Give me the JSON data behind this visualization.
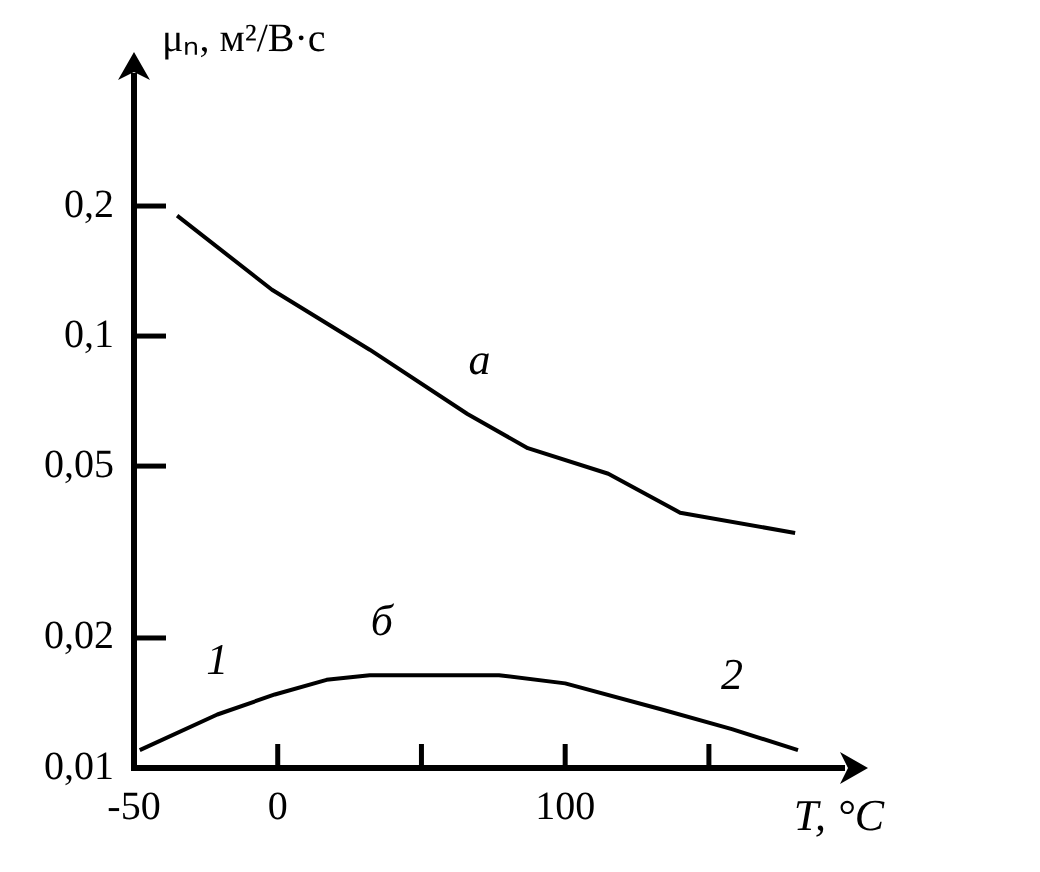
{
  "chart_data": {
    "type": "line",
    "xlabel": "T, °C",
    "ylabel": "μₙ, м²/В·с",
    "log": "y",
    "xlim": [
      -50,
      197
    ],
    "ylim": [
      0.01,
      0.4
    ],
    "xticks": [
      -50,
      0,
      {
        "value": 50,
        "label": null
      },
      100,
      {
        "value": 150,
        "label": null
      }
    ],
    "yticks": [
      {
        "value": 0.01,
        "label": "0,01"
      },
      {
        "value": 0.02,
        "label": "0,02"
      },
      {
        "value": 0.05,
        "label": "0,05"
      },
      {
        "value": 0.1,
        "label": "0,1"
      },
      {
        "value": 0.2,
        "label": "0,2"
      }
    ],
    "grid": false,
    "legend": false,
    "series": [
      {
        "name": "а",
        "color": "#000000",
        "x": [
          -35,
          -2,
          32,
          66,
          87,
          115,
          140,
          180
        ],
        "values": [
          0.19,
          0.128,
          0.093,
          0.066,
          0.055,
          0.048,
          0.039,
          0.035
        ]
      },
      {
        "name": "б",
        "color": "#000000",
        "x": [
          -48,
          -21,
          -1,
          17,
          32,
          77,
          100,
          133,
          158,
          181
        ],
        "values": [
          0.011,
          0.0133,
          0.0148,
          0.016,
          0.0164,
          0.0164,
          0.0157,
          0.0137,
          0.0123,
          0.011
        ]
      }
    ],
    "annotations": [
      {
        "text": "1",
        "x": -21,
        "y": 0.0133
      },
      {
        "text": "2",
        "x": 158,
        "y": 0.0123
      }
    ]
  }
}
